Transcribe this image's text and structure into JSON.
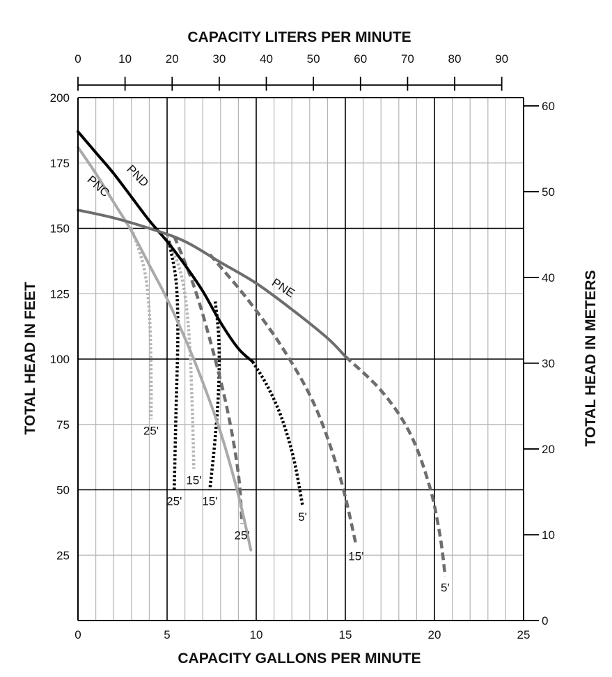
{
  "chart_data": {
    "type": "line",
    "top_axis": {
      "title": "CAPACITY LITERS PER MINUTE",
      "ticks": [
        "0",
        "10",
        "20",
        "30",
        "40",
        "50",
        "60",
        "70",
        "80",
        "90"
      ],
      "range": [
        0,
        90
      ]
    },
    "bottom_axis": {
      "title": "CAPACITY GALLONS PER MINUTE",
      "ticks": [
        "0",
        "5",
        "10",
        "15",
        "20",
        "25"
      ],
      "range": [
        0,
        25
      ]
    },
    "left_axis": {
      "title": "TOTAL HEAD IN FEET",
      "ticks": [
        "25",
        "50",
        "75",
        "100",
        "125",
        "150",
        "175",
        "200"
      ],
      "range": [
        0,
        200
      ]
    },
    "right_axis": {
      "title": "TOTAL HEAD IN METERS",
      "ticks": [
        "0",
        "10",
        "20",
        "30",
        "40",
        "50",
        "60"
      ],
      "range": [
        0,
        60
      ]
    },
    "grid": true,
    "colors": {
      "PNC": "#aaaaaa",
      "PND": "#000000",
      "PNE": "#6d6d6d",
      "PNC_dotted": "#b4b4b4",
      "grid_major": "#000000",
      "grid_minor": "#b5b5b5"
    },
    "series": [
      {
        "name": "PNC",
        "style": "solid",
        "color_key": "PNC",
        "x": [
          0,
          1,
          2,
          3,
          4,
          5,
          6,
          6.9,
          8,
          9,
          9.7
        ],
        "y": [
          181,
          171,
          160,
          149,
          136,
          123,
          108,
          93,
          72,
          48,
          27
        ]
      },
      {
        "name": "PND",
        "style": "solid",
        "color_key": "PND",
        "x": [
          0,
          1,
          2,
          3,
          4,
          5,
          6,
          7,
          8,
          9,
          9.8
        ],
        "y": [
          187,
          179,
          171,
          162,
          153,
          145,
          136,
          126,
          114,
          104,
          99
        ]
      },
      {
        "name": "PNE",
        "style": "solid",
        "color_key": "PNE",
        "x": [
          0,
          2,
          4,
          6,
          8,
          10,
          12,
          14,
          15
        ],
        "y": [
          157,
          154,
          150,
          145,
          137,
          129,
          119,
          108,
          101
        ]
      }
    ],
    "pipe_curves": [
      {
        "label": "25'",
        "pump": "PNC",
        "color_key": "PNC_dotted",
        "dash": "dotted",
        "x": [
          3.0,
          3.7,
          4.0,
          4.1,
          4.1
        ],
        "y": [
          150,
          135,
          118,
          95,
          77
        ]
      },
      {
        "label": "15'",
        "pump": "PNC",
        "color_key": "PNC_dotted",
        "dash": "dotted",
        "x": [
          5.0,
          5.8,
          6.2,
          6.4,
          6.5
        ],
        "y": [
          147,
          132,
          112,
          84,
          58
        ]
      },
      {
        "label": "25'",
        "pump": "PND",
        "color_key": "PND",
        "dash": "dotted",
        "x": [
          5.1,
          5.5,
          5.6,
          5.5,
          5.4
        ],
        "y": [
          145,
          130,
          110,
          80,
          50
        ]
      },
      {
        "label": "15'",
        "pump": "PND",
        "color_key": "PND",
        "dash": "dotted",
        "x": [
          7.7,
          7.9,
          7.9,
          7.7,
          7.4
        ],
        "y": [
          122,
          108,
          90,
          70,
          50
        ]
      },
      {
        "label": "5'",
        "pump": "PND",
        "color_key": "PND",
        "dash": "dotted",
        "x": [
          9.8,
          10.6,
          11.4,
          12.1,
          12.6
        ],
        "y": [
          99,
          90,
          78,
          62,
          44
        ]
      },
      {
        "label": "25'",
        "pump": "PNE",
        "color_key": "PNE",
        "dash": "dashed",
        "x": [
          5.4,
          6.5,
          7.5,
          8.4,
          9.0,
          9.2
        ],
        "y": [
          147,
          128,
          105,
          80,
          56,
          37
        ]
      },
      {
        "label": "15'",
        "pump": "PNE",
        "color_key": "PNE",
        "dash": "dashed",
        "x": [
          7.4,
          9.5,
          11.5,
          13.3,
          14.7,
          15.6
        ],
        "y": [
          140,
          123,
          104,
          82,
          55,
          29
        ]
      },
      {
        "label": "5'",
        "pump": "PNE",
        "color_key": "PNE",
        "dash": "dashed",
        "x": [
          15.0,
          17.0,
          18.6,
          19.7,
          20.3,
          20.6
        ],
        "y": [
          101,
          88,
          72,
          52,
          33,
          17
        ]
      }
    ]
  }
}
